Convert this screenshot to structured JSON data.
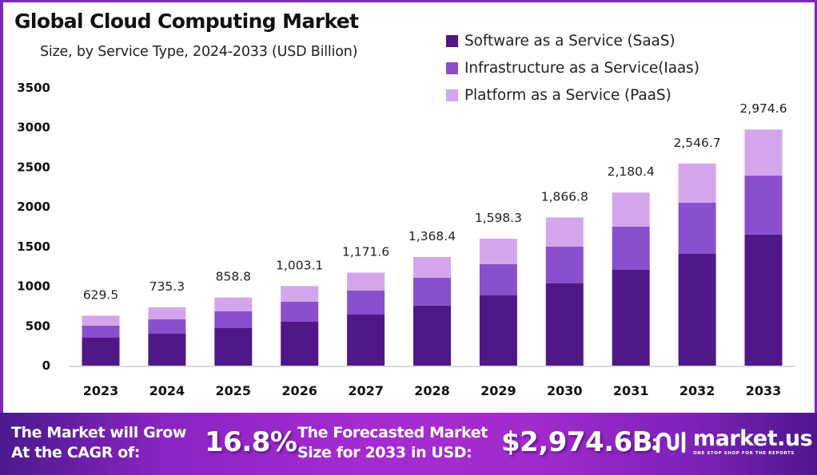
{
  "chart_data": {
    "type": "bar",
    "stacked": true,
    "title": "Global Cloud Computing Market",
    "subtitle": "Size, by Service Type, 2024-2033 (USD Billion)",
    "xlabel": "",
    "ylabel": "",
    "ylim": [
      0,
      3500
    ],
    "yticks": [
      0,
      500,
      1000,
      1500,
      2000,
      2500,
      3000,
      3500
    ],
    "grid": false,
    "legend_position": "top-right",
    "categories": [
      "2023",
      "2024",
      "2025",
      "2026",
      "2027",
      "2028",
      "2029",
      "2030",
      "2031",
      "2032",
      "2033"
    ],
    "series": [
      {
        "name": "Software as a Service (SaaS)",
        "color": "#4f1787",
        "values": [
          352,
          402,
          473,
          553,
          644,
          755,
          885,
          1036,
          1207,
          1408,
          1650
        ]
      },
      {
        "name": "Infrastructure as a Service(Iaas)",
        "color": "#8a4fcc",
        "values": [
          151,
          181,
          211,
          252,
          302,
          352,
          393,
          463,
          544,
          644,
          744
        ]
      },
      {
        "name": "Platform as a Service (PaaS)",
        "color": "#d3a6ec",
        "values": [
          126.5,
          152.3,
          174.8,
          198.1,
          225.6,
          261.4,
          320.3,
          367.8,
          429.4,
          494.7,
          580.6
        ]
      }
    ],
    "totals": [
      629.5,
      735.3,
      858.8,
      1003.1,
      1171.6,
      1368.4,
      1598.3,
      1866.8,
      2180.4,
      2546.7,
      2974.6
    ],
    "total_labels": [
      "629.5",
      "735.3",
      "858.8",
      "1,003.1",
      "1,171.6",
      "1,368.4",
      "1,598.3",
      "1,866.8",
      "2,180.4",
      "2,546.7",
      "2,974.6"
    ]
  },
  "banner": {
    "cagr_label_line1": "The Market will Grow",
    "cagr_label_line2": "At the CAGR of:",
    "cagr_value": "16.8%",
    "forecast_label_line1": "The Forecasted Market",
    "forecast_label_line2": "Size for 2033 in USD:",
    "forecast_value": "$2,974.6B",
    "logo_name": "market.us",
    "logo_tagline": "ONE STOP SHOP FOR THE REPORTS",
    "logo_icon": "market-us-logo-icon"
  }
}
